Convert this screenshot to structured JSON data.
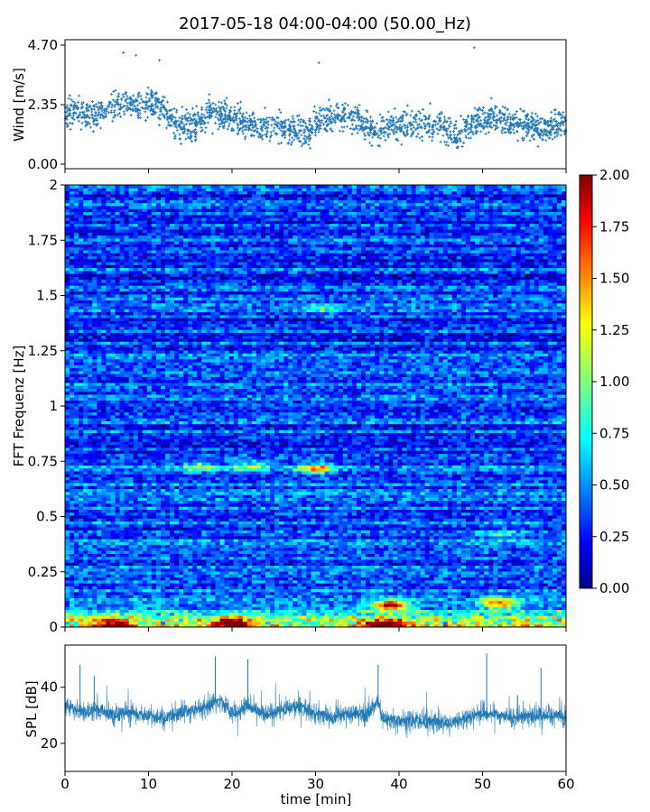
{
  "figure": {
    "title": "2017-05-18 04:00-04:00 (50.00_Hz)"
  },
  "chart_data": [
    {
      "type": "scatter",
      "name": "wind",
      "ylabel": "Wind [m/s]",
      "xlim": [
        0,
        60
      ],
      "ylim": [
        0,
        4.7
      ],
      "yticks": [
        0.0,
        2.35,
        4.7
      ],
      "ytick_labels": [
        "0.00",
        "2.35",
        "4.70"
      ],
      "xticks": [
        0,
        10,
        20,
        30,
        40,
        50,
        60
      ],
      "color": "#1f77b4",
      "marker": "+",
      "baseline_profile": {
        "x": [
          0,
          3,
          5,
          7,
          9,
          11,
          13,
          15,
          17,
          19,
          21,
          23,
          25,
          27,
          29,
          31,
          33,
          35,
          37,
          39,
          41,
          43,
          45,
          47,
          49,
          51,
          53,
          55,
          57,
          59,
          60
        ],
        "y": [
          2.1,
          1.9,
          2.1,
          2.5,
          2.2,
          2.4,
          1.6,
          1.5,
          1.9,
          2.0,
          1.7,
          1.5,
          1.5,
          1.3,
          1.2,
          1.8,
          1.9,
          1.8,
          1.3,
          1.5,
          1.5,
          1.6,
          1.6,
          1.1,
          1.7,
          1.9,
          1.7,
          1.6,
          1.4,
          1.5,
          1.6
        ]
      },
      "visible_peaks": [
        {
          "x": 7.0,
          "y": 4.4
        },
        {
          "x": 8.5,
          "y": 4.3
        },
        {
          "x": 11.3,
          "y": 4.1
        },
        {
          "x": 30.4,
          "y": 4.0
        },
        {
          "x": 49.0,
          "y": 4.6
        }
      ]
    },
    {
      "type": "heatmap",
      "name": "spectrogram",
      "ylabel": "FFT Frequenz [Hz]",
      "xlim": [
        0,
        60
      ],
      "ylim": [
        0,
        2
      ],
      "yticks": [
        0,
        0.25,
        0.5,
        0.75,
        1,
        1.25,
        1.5,
        1.75,
        2
      ],
      "ytick_labels": [
        "0",
        "0.25",
        "0.5",
        "0.75",
        "1",
        "1.25",
        "1.5",
        "1.75",
        "2"
      ],
      "colormap": "jet",
      "value_range": [
        0,
        2
      ],
      "colorbar_ticks": [
        0,
        0.25,
        0.5,
        0.75,
        1,
        1.25,
        1.5,
        1.75,
        2
      ],
      "colorbar_tick_labels": [
        "0.00",
        "0.25",
        "0.50",
        "0.75",
        "1.00",
        "1.25",
        "1.50",
        "1.75",
        "2.00"
      ],
      "background_level": 0.35,
      "low_frequency_band": {
        "freq_max": 0.1,
        "level": 1.2
      },
      "hotspots": [
        {
          "t": 30.0,
          "f": 0.72,
          "level": 1.3
        },
        {
          "t": 16.0,
          "f": 0.73,
          "level": 0.95
        },
        {
          "t": 22.0,
          "f": 0.73,
          "level": 0.95
        },
        {
          "t": 39.0,
          "f": 0.1,
          "level": 1.8
        },
        {
          "t": 52.0,
          "f": 0.11,
          "level": 1.6
        },
        {
          "t": 38.0,
          "f": 0.01,
          "level": 2.0
        },
        {
          "t": 20.0,
          "f": 0.015,
          "level": 1.9
        },
        {
          "t": 6.0,
          "f": 0.01,
          "level": 1.8
        },
        {
          "t": 30.5,
          "f": 1.44,
          "level": 0.8
        },
        {
          "t": 52.0,
          "f": 0.42,
          "level": 0.8
        }
      ]
    },
    {
      "type": "line",
      "name": "spl",
      "ylabel": "SPL [dB]",
      "xlabel": "time [min]",
      "xlim": [
        0,
        60
      ],
      "ylim": [
        10,
        55
      ],
      "yticks": [
        20,
        40
      ],
      "ytick_labels": [
        "20",
        "40"
      ],
      "xticks": [
        0,
        10,
        20,
        30,
        40,
        50,
        60
      ],
      "xtick_labels": [
        "0",
        "10",
        "20",
        "30",
        "40",
        "50",
        "60"
      ],
      "color": "#1f77b4",
      "mean_profile": {
        "x": [
          0,
          2,
          4,
          6,
          8,
          10,
          12,
          14,
          16,
          18,
          18.5,
          20,
          22,
          24,
          26,
          28,
          30,
          32,
          34,
          36,
          37.5,
          38,
          40,
          42,
          44,
          46,
          48,
          50,
          52,
          54,
          56,
          58,
          60
        ],
        "y": [
          34,
          31,
          32,
          30,
          31,
          30,
          29,
          31,
          32,
          35,
          36,
          31,
          33,
          30,
          32,
          33,
          31,
          29,
          31,
          30,
          35,
          29,
          28,
          28,
          28,
          27,
          29,
          31,
          30,
          29,
          30,
          30,
          29
        ]
      },
      "spread_db": 4,
      "visible_peaks": [
        {
          "x": 1.8,
          "y": 48
        },
        {
          "x": 3.5,
          "y": 44
        },
        {
          "x": 18.0,
          "y": 51
        },
        {
          "x": 21.9,
          "y": 50
        },
        {
          "x": 37.5,
          "y": 48
        },
        {
          "x": 50.5,
          "y": 52
        },
        {
          "x": 57.0,
          "y": 47
        }
      ]
    }
  ]
}
